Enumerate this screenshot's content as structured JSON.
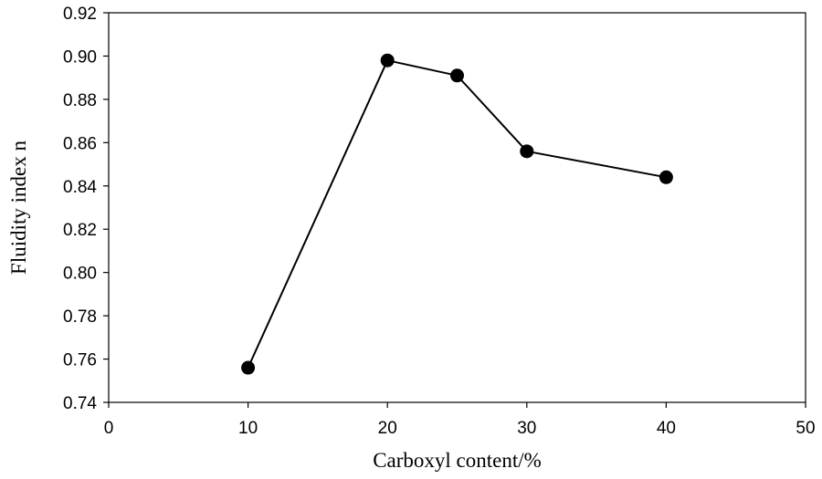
{
  "chart_data": {
    "type": "line",
    "title": "",
    "xlabel": "Carboxyl content/%",
    "ylabel": "Fluidity index n",
    "xlim": [
      0,
      50
    ],
    "ylim": [
      0.74,
      0.92
    ],
    "x_ticks": [
      0,
      10,
      20,
      30,
      40,
      50
    ],
    "x_tick_labels": [
      "0",
      "10",
      "20",
      "30",
      "40",
      "50"
    ],
    "y_ticks": [
      0.74,
      0.76,
      0.78,
      0.8,
      0.82,
      0.84,
      0.86,
      0.88,
      0.9,
      0.92
    ],
    "y_tick_labels": [
      "0.74",
      "0.76",
      "0.78",
      "0.80",
      "0.82",
      "0.84",
      "0.86",
      "0.88",
      "0.90",
      "0.92"
    ],
    "grid": false,
    "legend": "none",
    "series": [
      {
        "x": [
          10,
          20,
          25,
          30,
          40
        ],
        "y": [
          0.756,
          0.898,
          0.891,
          0.856,
          0.844
        ],
        "marker": "circle",
        "color": "#000000"
      }
    ]
  }
}
